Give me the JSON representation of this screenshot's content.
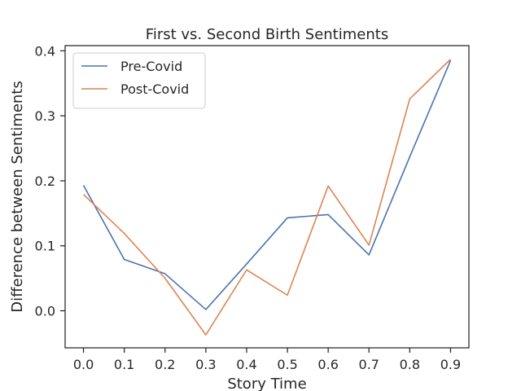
{
  "chart_data": {
    "type": "line",
    "title": "First vs. Second Birth Sentiments",
    "xlabel": "Story Time",
    "ylabel": "Difference between Sentiments",
    "x": [
      0.0,
      0.1,
      0.2,
      0.3,
      0.4,
      0.5,
      0.6,
      0.7,
      0.8,
      0.9
    ],
    "xlim": [
      -0.045,
      0.945
    ],
    "ylim": [
      -0.057,
      0.408
    ],
    "xticks": [
      0.0,
      0.1,
      0.2,
      0.3,
      0.4,
      0.5,
      0.6,
      0.7,
      0.8,
      0.9
    ],
    "xtick_labels": [
      "0.0",
      "0.1",
      "0.2",
      "0.3",
      "0.4",
      "0.5",
      "0.6",
      "0.7",
      "0.8",
      "0.9"
    ],
    "yticks": [
      0.0,
      0.1,
      0.2,
      0.3,
      0.4
    ],
    "ytick_labels": [
      "0.0",
      "0.1",
      "0.2",
      "0.3",
      "0.4"
    ],
    "grid": false,
    "legend_position": "top-left",
    "series": [
      {
        "name": "Pre-Covid",
        "color": "#4c72b0",
        "values": [
          0.193,
          0.079,
          0.057,
          0.002,
          0.072,
          0.143,
          0.148,
          0.086,
          0.237,
          0.385
        ]
      },
      {
        "name": "Post-Covid",
        "color": "#dd8452",
        "values": [
          0.179,
          0.119,
          0.05,
          -0.037,
          0.063,
          0.024,
          0.192,
          0.101,
          0.326,
          0.387
        ]
      }
    ]
  }
}
